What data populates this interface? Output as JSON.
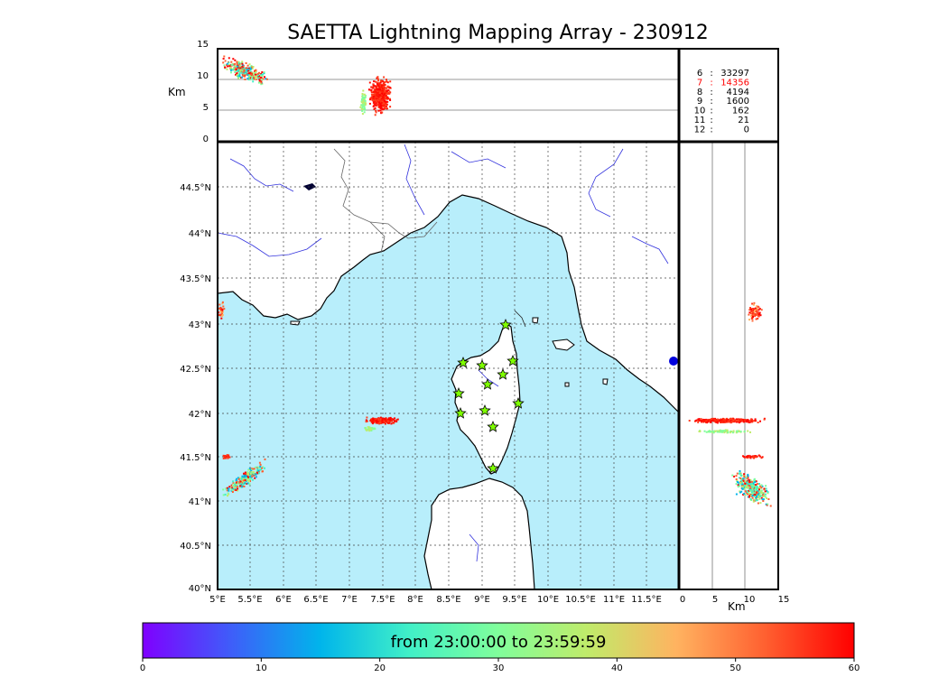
{
  "title": "SAETTA Lightning Mapping Array - 230912",
  "alt_axis": {
    "label": "Km",
    "ticks": [
      "15",
      "10",
      "5",
      "0"
    ]
  },
  "lat_ticks": [
    "44.5°N",
    "44°N",
    "43.5°N",
    "43°N",
    "42.5°N",
    "42°N",
    "41.5°N",
    "41°N",
    "40.5°N",
    "40°N"
  ],
  "lon_ticks": [
    "5°E",
    "5.5°E",
    "6°E",
    "6.5°E",
    "7°E",
    "7.5°E",
    "8°E",
    "8.5°E",
    "9°E",
    "9.5°E",
    "10°E",
    "10.5°E",
    "11°E",
    "11.5°E"
  ],
  "side_axis": {
    "label": "Km",
    "ticks": [
      "0",
      "5",
      "10",
      "15"
    ]
  },
  "station_counts": [
    {
      "n": "6",
      "sep": ":",
      "count": "33297",
      "color": "#000000"
    },
    {
      "n": "7",
      "sep": ":",
      "count": "14356",
      "color": "#ff0000"
    },
    {
      "n": "8",
      "sep": ":",
      "count": "4194",
      "color": "#000000"
    },
    {
      "n": "9",
      "sep": ":",
      "count": "1600",
      "color": "#000000"
    },
    {
      "n": "10",
      "sep": ":",
      "count": "162",
      "color": "#000000"
    },
    {
      "n": "11",
      "sep": ":",
      "count": "21",
      "color": "#000000"
    },
    {
      "n": "12",
      "sep": ":",
      "count": "0",
      "color": "#000000"
    }
  ],
  "colorbar": {
    "label": "from 23:00:00 to 23:59:59",
    "ticks": [
      "0",
      "10",
      "20",
      "30",
      "40",
      "50",
      "60"
    ],
    "colors": [
      "#7f00ff",
      "#3e5ef9",
      "#00b5eb",
      "#41f0c7",
      "#80fe9b",
      "#c0eb6a",
      "#ffb360",
      "#ff6030",
      "#ff0000"
    ]
  },
  "map_colors": {
    "sea": "#b8eefb",
    "land": "#ffffff",
    "coast": "#000000",
    "rivers": "#3333dd",
    "borders": "#555555"
  },
  "stations_icon": "star-icon",
  "stations_count": 13
}
